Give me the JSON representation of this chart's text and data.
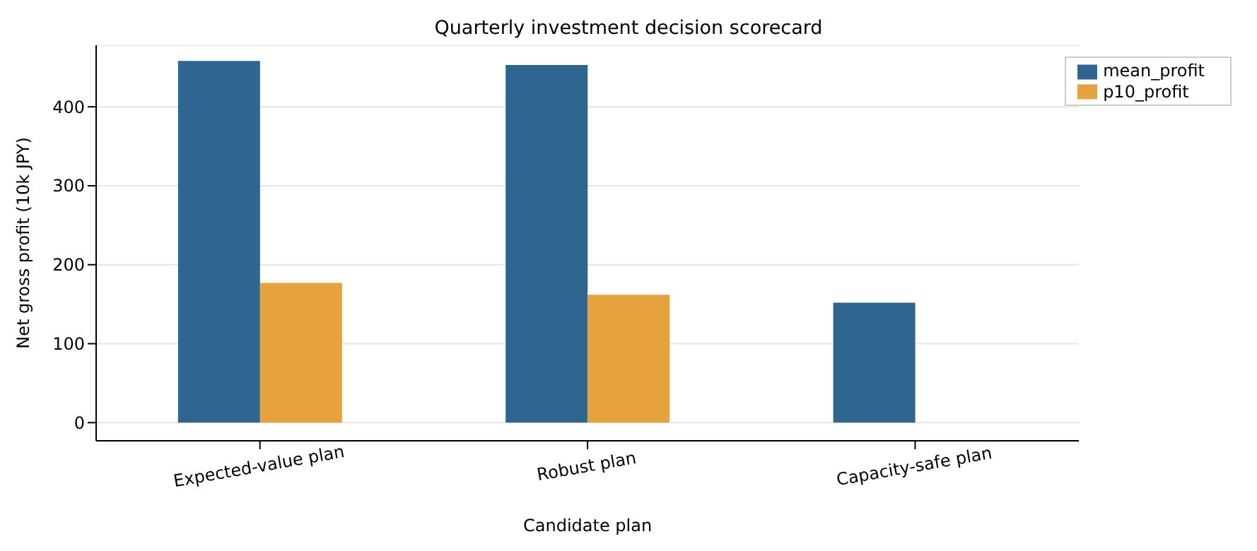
{
  "chart_data": {
    "type": "bar",
    "title": "Quarterly investment decision scorecard",
    "xlabel": "Candidate plan",
    "ylabel": "Net gross profit (10k JPY)",
    "categories": [
      "Expected-value plan",
      "Robust plan",
      "Capacity-safe plan"
    ],
    "series": [
      {
        "name": "mean_profit",
        "color": "#2e668f",
        "values": [
          458,
          453,
          152
        ]
      },
      {
        "name": "p10_profit",
        "color": "#e6a23c",
        "values": [
          177,
          162,
          0
        ]
      }
    ],
    "ylim": [
      -23,
      478
    ],
    "yticks": [
      0,
      100,
      200,
      300,
      400
    ],
    "grid": "y",
    "legend": "top right"
  }
}
